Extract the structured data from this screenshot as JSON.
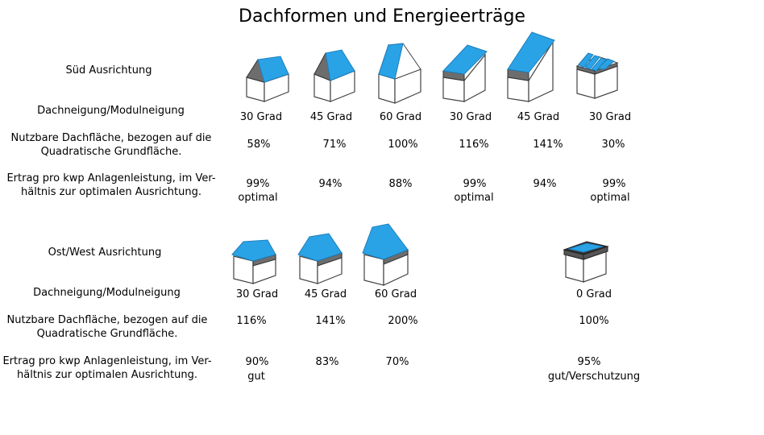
{
  "title": "Dachformen und Energieerträge",
  "roof_color": "#2aa3e6",
  "sud": {
    "heading": "Süd Ausrichtung",
    "row_labels": {
      "neigung": "Dachneigung/Modulneigung",
      "flaeche_1": "Nutzbare Dachfläche, bezogen auf die",
      "flaeche_2": "Quadratische Grundfläche.",
      "ertrag_1": "Ertrag pro kwp Anlagenleistung, im Ver-",
      "ertrag_2": "hältnis zur optimalen Ausrichtung."
    },
    "columns": [
      {
        "icon": "gable-roof-30-icon",
        "neigung": "30 Grad",
        "flaeche": "58%",
        "ertrag": "99%",
        "note": "optimal"
      },
      {
        "icon": "gable-roof-45-icon",
        "neigung": "45 Grad",
        "flaeche": "71%",
        "ertrag": "94%",
        "note": ""
      },
      {
        "icon": "gable-roof-60-icon",
        "neigung": "60 Grad",
        "flaeche": "100%",
        "ertrag": "88%",
        "note": ""
      },
      {
        "icon": "shed-roof-30-icon",
        "neigung": "30 Grad",
        "flaeche": "116%",
        "ertrag": "99%",
        "note": "optimal"
      },
      {
        "icon": "shed-roof-45-icon",
        "neigung": "45 Grad",
        "flaeche": "141%",
        "ertrag": "94%",
        "note": ""
      },
      {
        "icon": "flat-roof-racks-icon",
        "neigung": "30 Grad",
        "flaeche": "30%",
        "ertrag": "99%",
        "note": "optimal"
      }
    ]
  },
  "ostwest": {
    "heading": "Ost/West Ausrichtung",
    "row_labels": {
      "neigung": "Dachneigung/Modulneigung",
      "flaeche_1": "Nutzbare Dachfläche, bezogen auf die",
      "flaeche_2": "Quadratische Grundfläche.",
      "ertrag_1": "Ertrag pro kwp Anlagenleistung, im Ver-",
      "ertrag_2": "hältnis zur optimalen Ausrichtung."
    },
    "columns": [
      {
        "icon": "gable-roof-30-icon",
        "neigung": "30 Grad",
        "flaeche": "116%",
        "ertrag": "90%",
        "note": "gut"
      },
      {
        "icon": "gable-roof-45-icon",
        "neigung": "45 Grad",
        "flaeche": "141%",
        "ertrag": "83%",
        "note": ""
      },
      {
        "icon": "gable-roof-60-icon",
        "neigung": "60 Grad",
        "flaeche": "200%",
        "ertrag": "70%",
        "note": ""
      },
      {
        "icon": "flat-roof-0-icon",
        "neigung": "0 Grad",
        "flaeche": "100%",
        "ertrag": "95%",
        "note": "gut/Verschutzung"
      }
    ]
  }
}
